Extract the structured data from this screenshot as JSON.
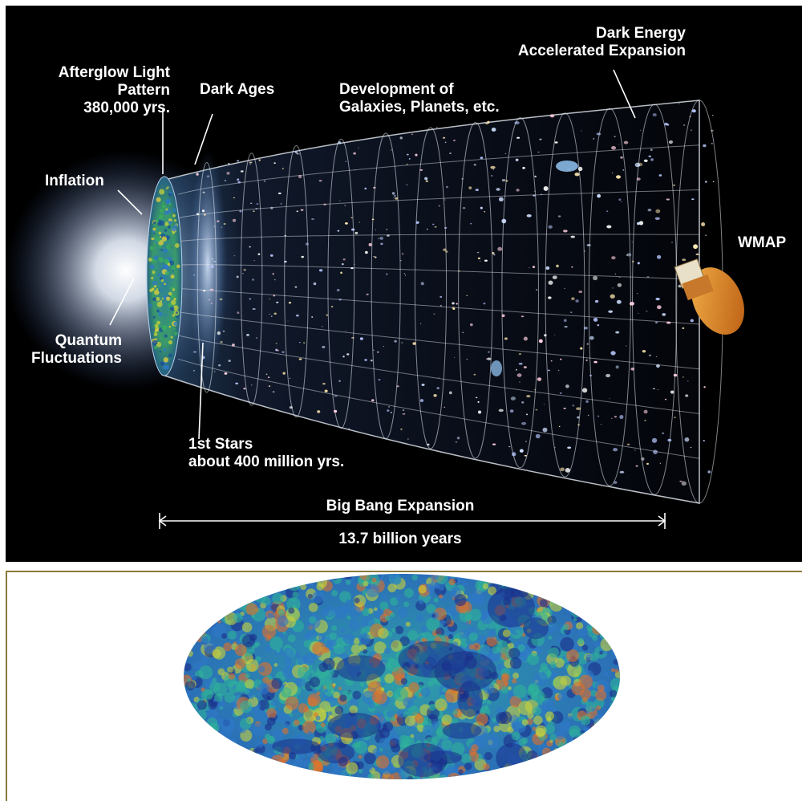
{
  "timeline": {
    "labels": {
      "afterglow": "Afterglow Light\nPattern\n380,000 yrs.",
      "dark_ages": "Dark Ages",
      "development": "Development of\nGalaxies, Planets, etc.",
      "dark_energy": "Dark Energy\nAccelerated Expansion",
      "inflation": "Inflation",
      "quantum": "Quantum\nFluctuations",
      "wmap": "WMAP",
      "first_stars": "1st Stars\nabout 400 million yrs.",
      "expansion": "Big Bang Expansion",
      "duration": "13.7 billion years"
    },
    "colors": {
      "background": "#000000",
      "grid": "#e8eef5",
      "label": "#ffffff",
      "spacecraft": "#d98a1f"
    }
  },
  "cmb_map": {
    "colors": {
      "cold": "#1a2f8a",
      "cool": "#2f78c8",
      "mid": "#2fb39a",
      "warm": "#c8d23a",
      "hot": "#e0702a",
      "frame": "#8a7a3a"
    }
  }
}
